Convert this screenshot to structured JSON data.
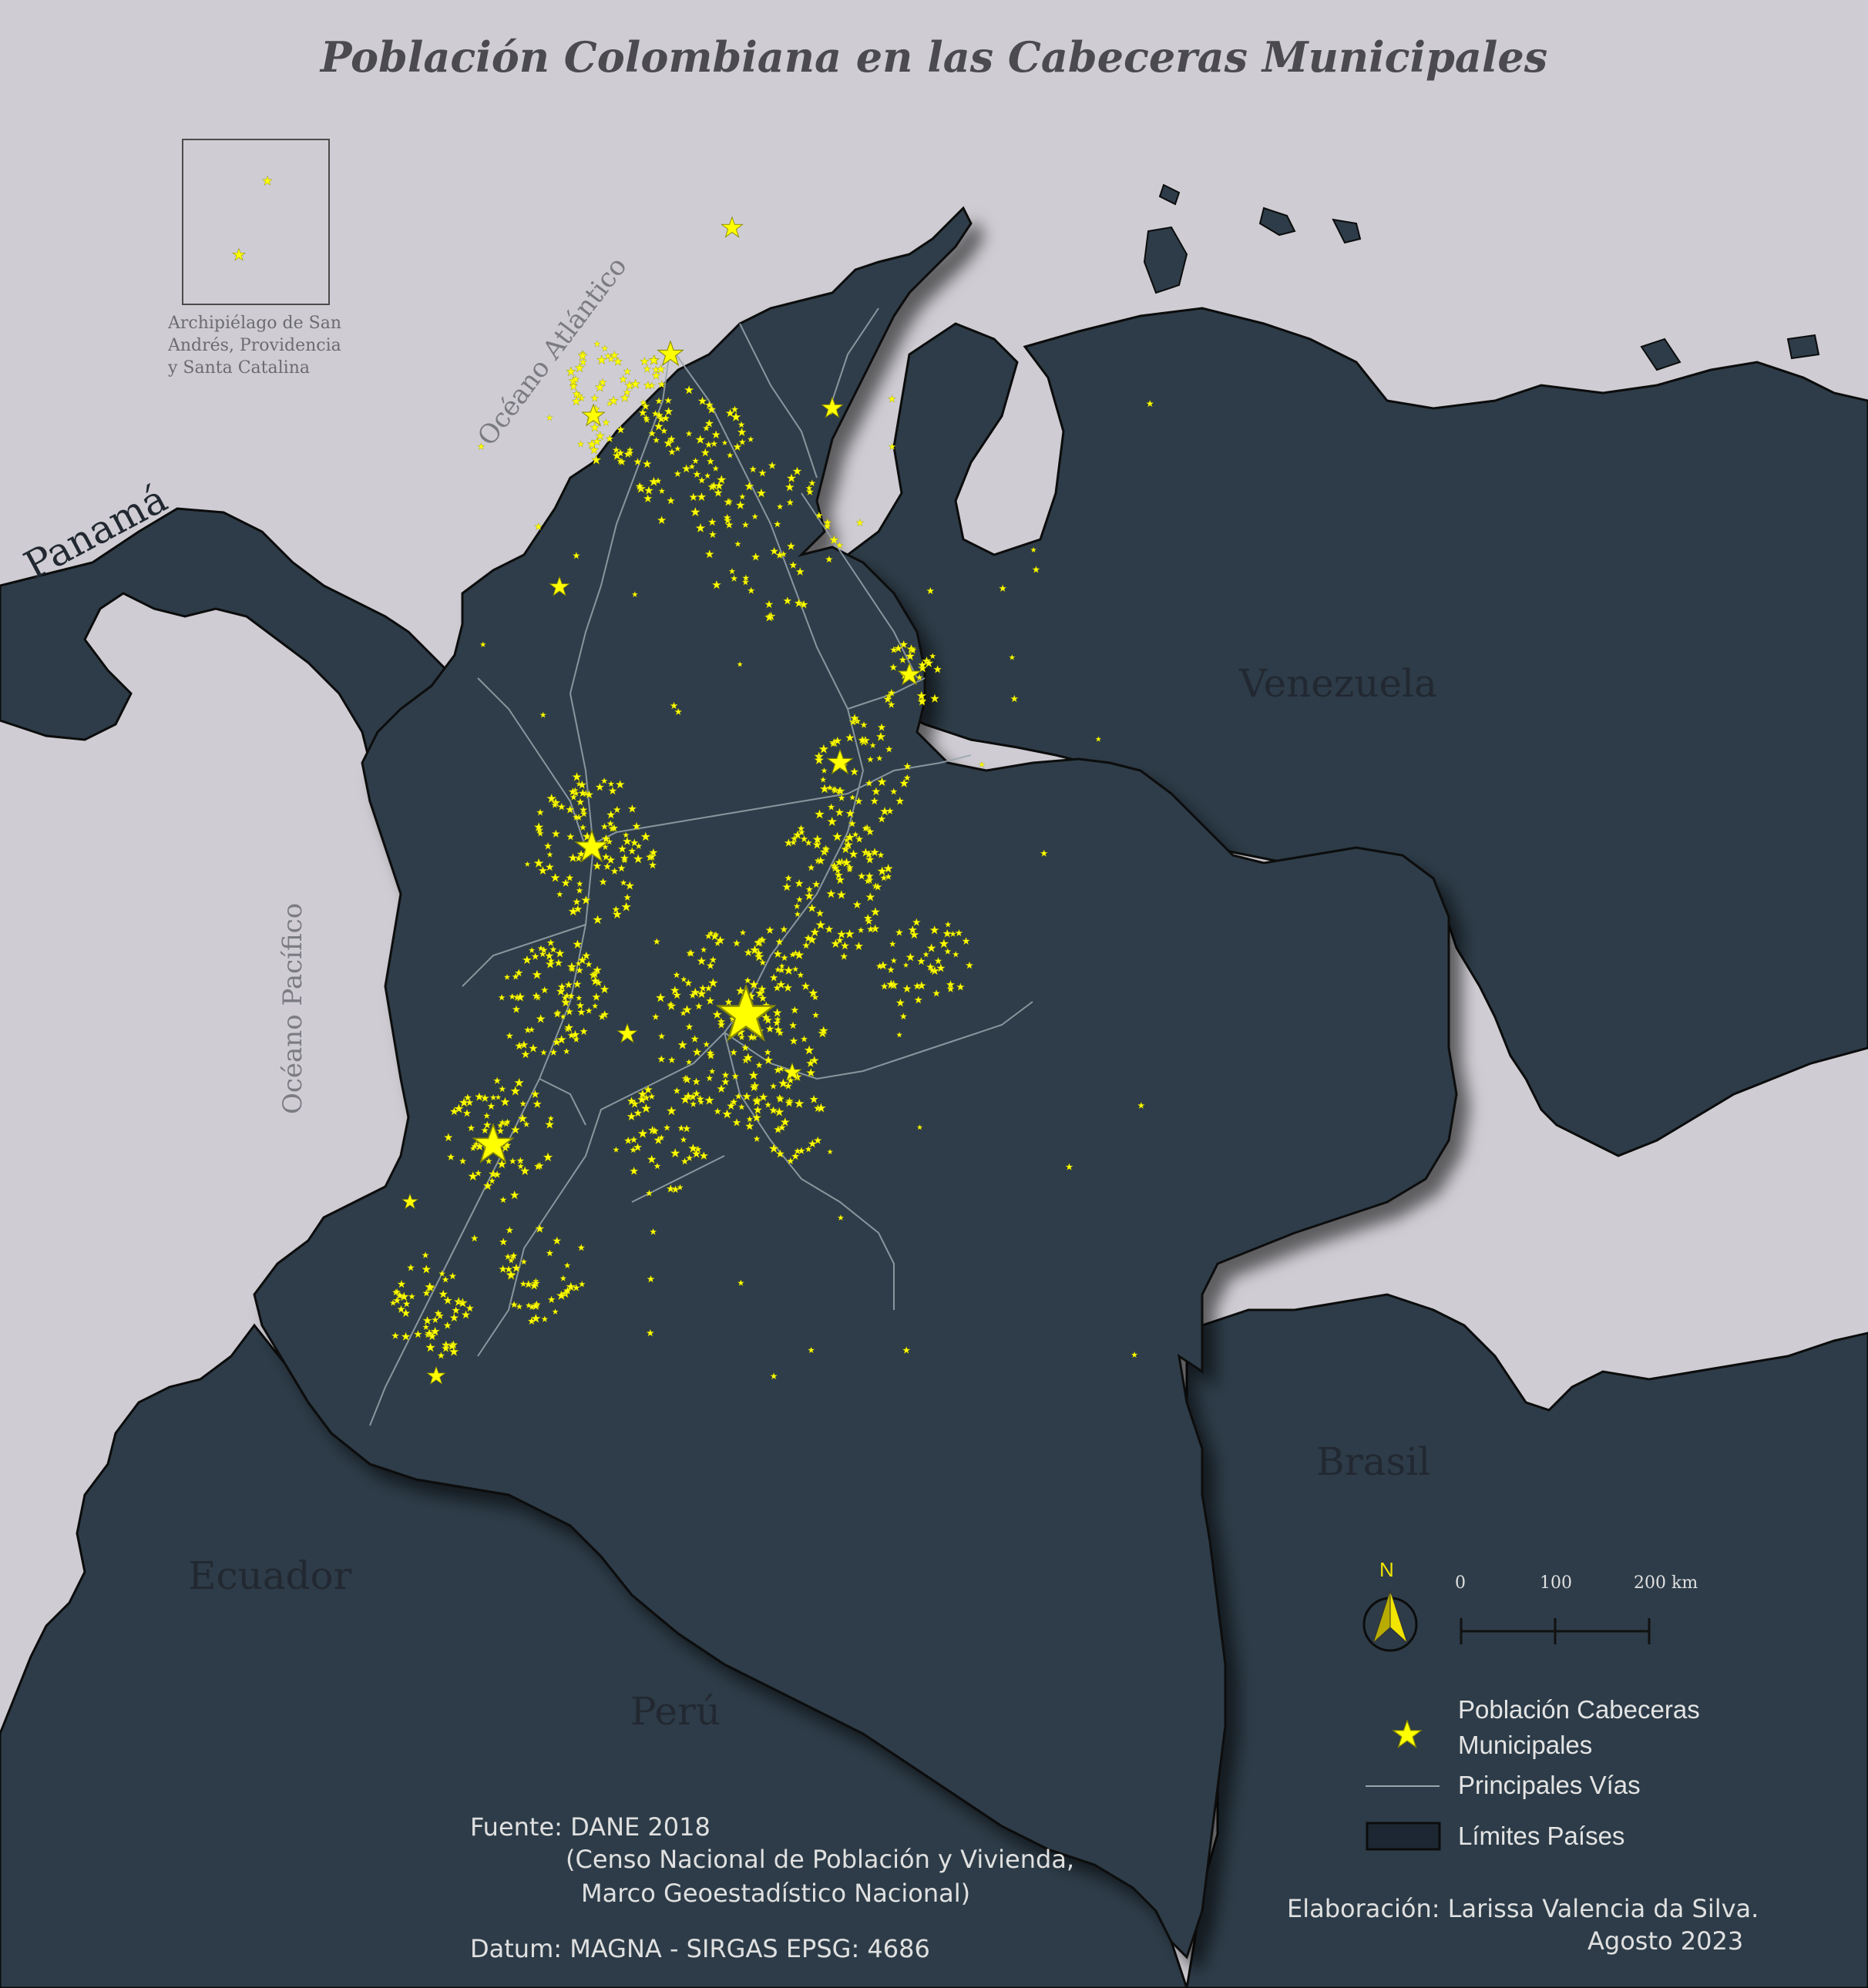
{
  "title": "Población Colombiana en las Cabeceras Municipales",
  "countries": {
    "venezuela": "Venezuela",
    "panama": "Panamá",
    "brasil": "Brasil",
    "ecuador": "Ecuador",
    "peru": "Perú"
  },
  "oceans": {
    "atlantic": "Océano Atlántico",
    "pacific": "Océano Pacífico"
  },
  "inset": {
    "label_line1": "Archipiélago de San",
    "label_line2": "Andrés, Providencia",
    "label_line3": "y Santa Catalina"
  },
  "north_arrow": {
    "label": "N"
  },
  "scale_bar": {
    "ticks": [
      "0",
      "100",
      "200 km"
    ]
  },
  "legend": {
    "population_line1": "Población Cabeceras",
    "population_line2": "Municipales",
    "roads": "Principales Vías",
    "boundaries": "Límites Países"
  },
  "source": {
    "line1": "Fuente: DANE 2018",
    "line2": "(Censo Nacional de Población y Vivienda,",
    "line3": "Marco Geoestadístico Nacional)",
    "datum": "Datum: MAGNA - SIRGAS EPSG: 4686"
  },
  "credits": {
    "author": "Elaboración: Larissa Valencia da Silva.",
    "date": "Agosto 2023"
  },
  "colors": {
    "sea": "#cfcdd3",
    "land": "#2d3c48",
    "star": "#ffff00",
    "roads": "#9aa6ad",
    "border": "#0d0d0d"
  }
}
